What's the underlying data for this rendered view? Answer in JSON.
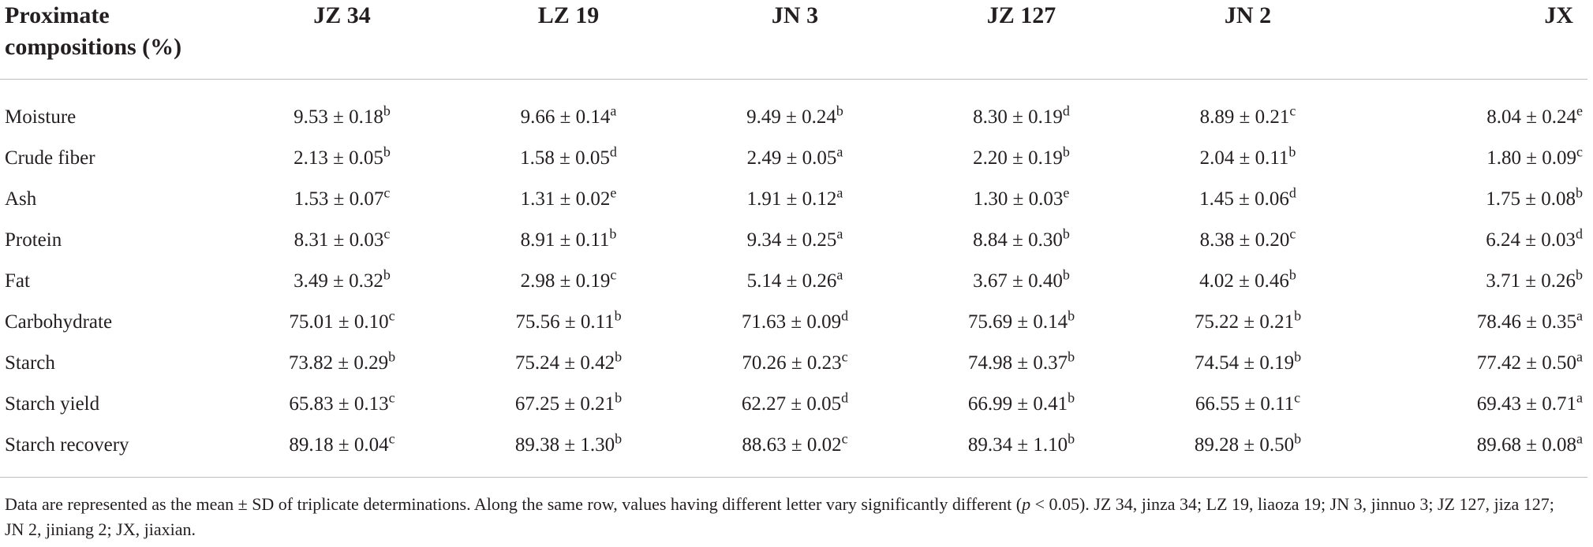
{
  "table": {
    "header_first": "Proximate compositions (%)",
    "columns": [
      "JZ 34",
      "LZ 19",
      "JN 3",
      "JZ 127",
      "JN 2",
      "JX"
    ],
    "rows": [
      {
        "label": "Moisture",
        "cells": [
          {
            "v": "9.53 ± 0.18",
            "s": "b"
          },
          {
            "v": "9.66 ± 0.14",
            "s": "a"
          },
          {
            "v": "9.49 ± 0.24",
            "s": "b"
          },
          {
            "v": "8.30 ± 0.19",
            "s": "d"
          },
          {
            "v": "8.89 ± 0.21",
            "s": "c"
          },
          {
            "v": "8.04 ± 0.24",
            "s": "e"
          }
        ]
      },
      {
        "label": "Crude fiber",
        "cells": [
          {
            "v": "2.13 ± 0.05",
            "s": "b"
          },
          {
            "v": "1.58 ± 0.05",
            "s": "d"
          },
          {
            "v": "2.49 ± 0.05",
            "s": "a"
          },
          {
            "v": "2.20 ± 0.19",
            "s": "b"
          },
          {
            "v": "2.04 ± 0.11",
            "s": "b"
          },
          {
            "v": "1.80 ± 0.09",
            "s": "c"
          }
        ]
      },
      {
        "label": "Ash",
        "cells": [
          {
            "v": "1.53 ± 0.07",
            "s": "c"
          },
          {
            "v": "1.31 ± 0.02",
            "s": "e"
          },
          {
            "v": "1.91 ± 0.12",
            "s": "a"
          },
          {
            "v": "1.30 ± 0.03",
            "s": "e"
          },
          {
            "v": "1.45 ± 0.06",
            "s": "d"
          },
          {
            "v": "1.75 ± 0.08",
            "s": "b"
          }
        ]
      },
      {
        "label": "Protein",
        "cells": [
          {
            "v": "8.31 ± 0.03",
            "s": "c"
          },
          {
            "v": "8.91 ± 0.11",
            "s": "b"
          },
          {
            "v": "9.34 ± 0.25",
            "s": "a"
          },
          {
            "v": "8.84 ± 0.30",
            "s": "b"
          },
          {
            "v": "8.38 ± 0.20",
            "s": "c"
          },
          {
            "v": "6.24 ± 0.03",
            "s": "d"
          }
        ]
      },
      {
        "label": "Fat",
        "cells": [
          {
            "v": "3.49 ± 0.32",
            "s": "b"
          },
          {
            "v": "2.98 ± 0.19",
            "s": "c"
          },
          {
            "v": "5.14 ± 0.26",
            "s": "a"
          },
          {
            "v": "3.67 ± 0.40",
            "s": "b"
          },
          {
            "v": "4.02 ± 0.46",
            "s": "b"
          },
          {
            "v": "3.71 ± 0.26",
            "s": "b"
          }
        ]
      },
      {
        "label": "Carbohydrate",
        "cells": [
          {
            "v": "75.01 ± 0.10",
            "s": "c"
          },
          {
            "v": "75.56 ± 0.11",
            "s": "b"
          },
          {
            "v": "71.63 ± 0.09",
            "s": "d"
          },
          {
            "v": "75.69 ± 0.14",
            "s": "b"
          },
          {
            "v": "75.22 ± 0.21",
            "s": "b"
          },
          {
            "v": "78.46 ± 0.35",
            "s": "a"
          }
        ]
      },
      {
        "label": "Starch",
        "cells": [
          {
            "v": "73.82 ± 0.29",
            "s": "b"
          },
          {
            "v": "75.24 ± 0.42",
            "s": "b"
          },
          {
            "v": "70.26 ± 0.23",
            "s": "c"
          },
          {
            "v": "74.98 ± 0.37",
            "s": "b"
          },
          {
            "v": "74.54 ± 0.19",
            "s": "b"
          },
          {
            "v": "77.42 ± 0.50",
            "s": "a"
          }
        ]
      },
      {
        "label": "Starch yield",
        "cells": [
          {
            "v": "65.83 ± 0.13",
            "s": "c"
          },
          {
            "v": "67.25 ± 0.21",
            "s": "b"
          },
          {
            "v": "62.27 ± 0.05",
            "s": "d"
          },
          {
            "v": "66.99 ± 0.41",
            "s": "b"
          },
          {
            "v": "66.55 ± 0.11",
            "s": "c"
          },
          {
            "v": "69.43 ± 0.71",
            "s": "a"
          }
        ]
      },
      {
        "label": "Starch recovery",
        "cells": [
          {
            "v": "89.18 ± 0.04",
            "s": "c"
          },
          {
            "v": "89.38 ± 1.30",
            "s": "b"
          },
          {
            "v": "88.63 ± 0.02",
            "s": "c"
          },
          {
            "v": "89.34 ± 1.10",
            "s": "b"
          },
          {
            "v": "89.28 ± 0.50",
            "s": "b"
          },
          {
            "v": "89.68 ± 0.08",
            "s": "a"
          }
        ]
      }
    ]
  },
  "footnote": {
    "part1": "Data are represented as the mean ± SD of triplicate determinations. Along the same row, values having different letter vary significantly different (",
    "p": "p",
    "part2": " < 0.05). JZ 34, jinza 34; LZ 19, liaoza 19; JN 3, jinnuo 3; JZ 127, jiza 127; JN 2, jiniang 2; JX, jiaxian."
  }
}
